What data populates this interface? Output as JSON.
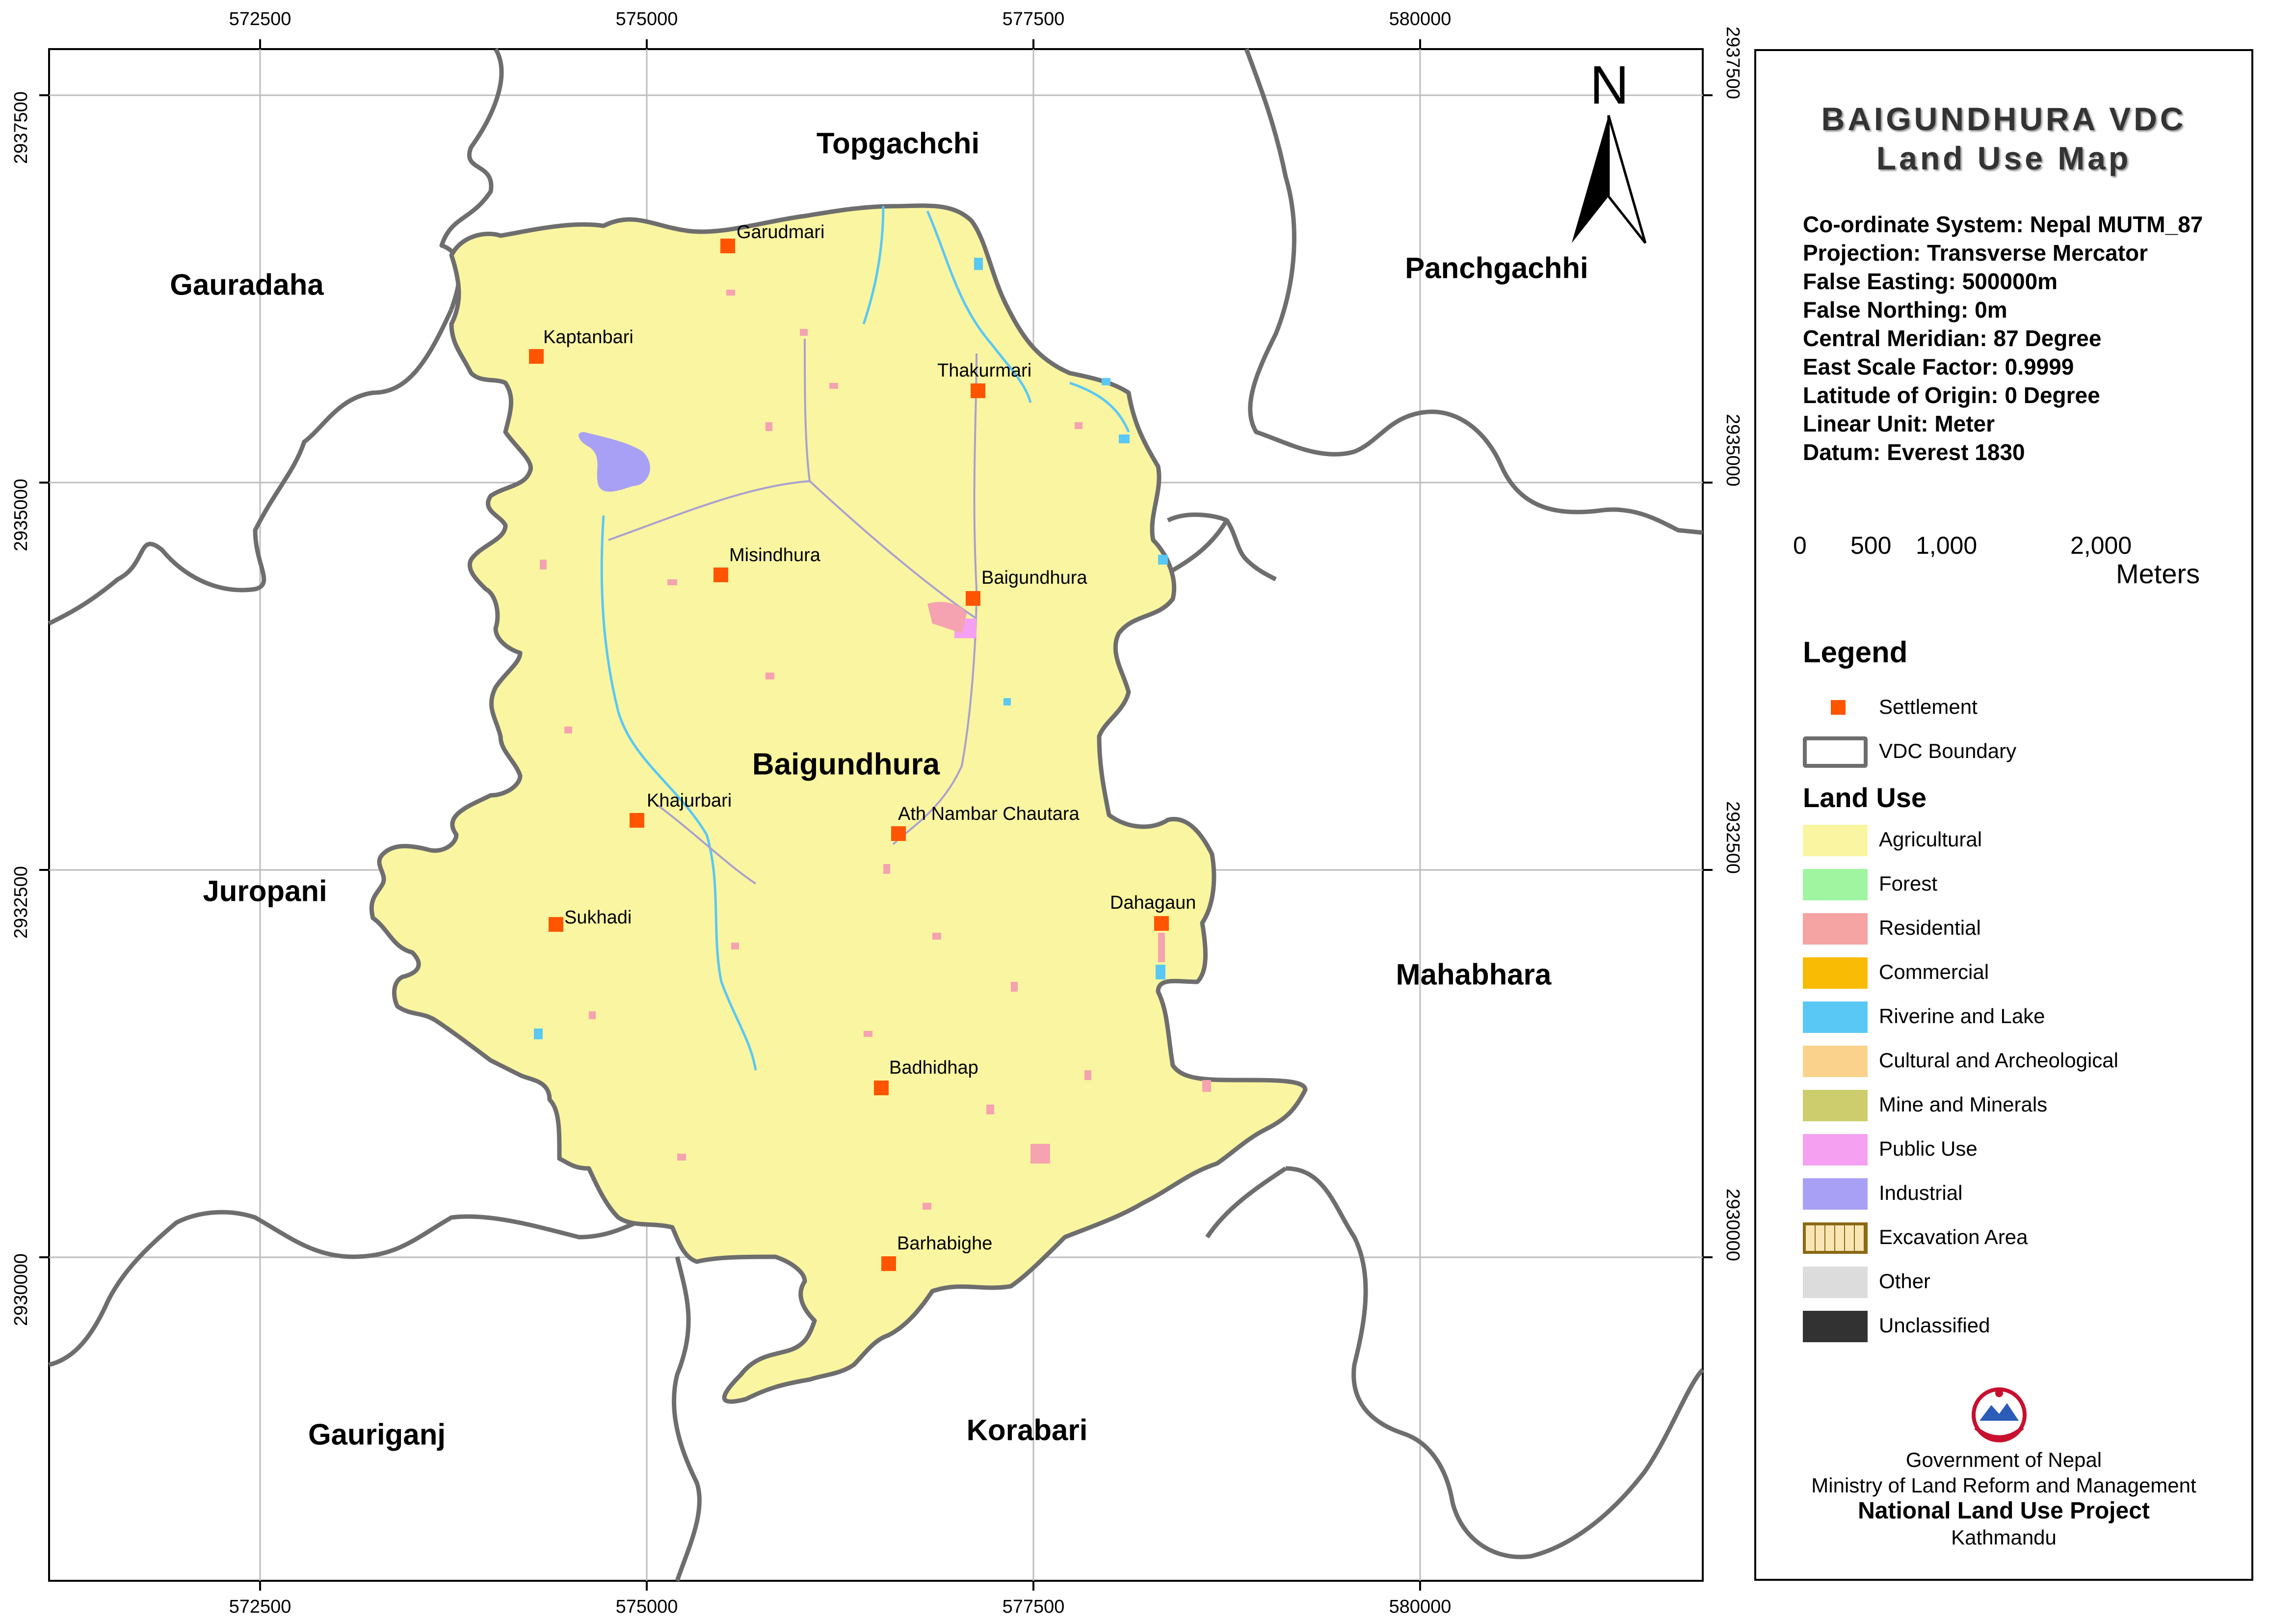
{
  "map": {
    "ticks": {
      "x": [
        "572500",
        "575000",
        "577500",
        "580000"
      ],
      "y": [
        "2937500",
        "2935000",
        "2932500",
        "2930000"
      ]
    },
    "north": "N",
    "regions": {
      "topgachchi": "Topgachchi",
      "gauradaha": "Gauradaha",
      "panchgachhi": "Panchgachhi",
      "baigundhura": "Baigundhura",
      "juropani": "Juropani",
      "mahabhara": "Mahabhara",
      "gauriganj": "Gauriganj",
      "korabari": "Korabari"
    },
    "settlements": [
      {
        "name": "Garudmari"
      },
      {
        "name": "Kaptanbari"
      },
      {
        "name": "Thakurmari"
      },
      {
        "name": "Misindhura"
      },
      {
        "name": "Baigundhura"
      },
      {
        "name": "Khajurbari"
      },
      {
        "name": "Ath Nambar Chautara"
      },
      {
        "name": "Sukhadi"
      },
      {
        "name": "Dahagaun"
      },
      {
        "name": "Badhidhap"
      },
      {
        "name": "Barhabighe"
      }
    ],
    "colors": {
      "agricultural": "#faf5a0",
      "residential": "#f5a3b0",
      "riverine": "#5ac8f5",
      "public_use": "#f5a0f0",
      "industrial": "#a8a0f5",
      "boundary": "#6e6e6e",
      "settlement": "#ff5500",
      "grid": "#bcbcbc"
    }
  },
  "panel": {
    "title_line1": "BAIGUNDHURA VDC",
    "title_line2": "Land Use Map",
    "info": [
      "Co-ordinate System: Nepal MUTM_87",
      "Projection: Transverse Mercator",
      "False Easting: 500000m",
      "False Northing: 0m",
      "Central Meridian: 87 Degree",
      "East Scale Factor: 0.9999",
      "Latitude of Origin: 0 Degree",
      "Linear Unit: Meter",
      "Datum: Everest 1830"
    ],
    "scale": {
      "labels": [
        "0",
        "500",
        "1,000",
        "2,000"
      ],
      "unit": "Meters"
    },
    "legend_title": "Legend",
    "legend_items": [
      {
        "label": "Settlement",
        "color": "#ff5500"
      },
      {
        "label": "VDC Boundary",
        "color": "#ffffff"
      }
    ],
    "land_use_title": "Land Use",
    "land_use": [
      {
        "label": "Agricultural",
        "color": "#faf5a0"
      },
      {
        "label": "Forest",
        "color": "#a0f5a0"
      },
      {
        "label": "Residential",
        "color": "#f5a3a3"
      },
      {
        "label": "Commercial",
        "color": "#fabb05"
      },
      {
        "label": "Riverine and Lake",
        "color": "#5ac8f5"
      },
      {
        "label": "Cultural and Archeological",
        "color": "#fad28c"
      },
      {
        "label": "Mine and Minerals",
        "color": "#cdcd6e"
      },
      {
        "label": "Public Use",
        "color": "#f5a0f0"
      },
      {
        "label": "Industrial",
        "color": "#a8a0f5"
      },
      {
        "label": "Excavation Area",
        "color": "#fae6b4"
      },
      {
        "label": "Other",
        "color": "#dcdcdc"
      },
      {
        "label": "Unclassified",
        "color": "#323232"
      }
    ],
    "footer": {
      "line1": "Government of Nepal",
      "line2": "Ministry of Land Reform and Management",
      "line3": "National Land Use Project",
      "line4": "Kathmandu"
    }
  }
}
